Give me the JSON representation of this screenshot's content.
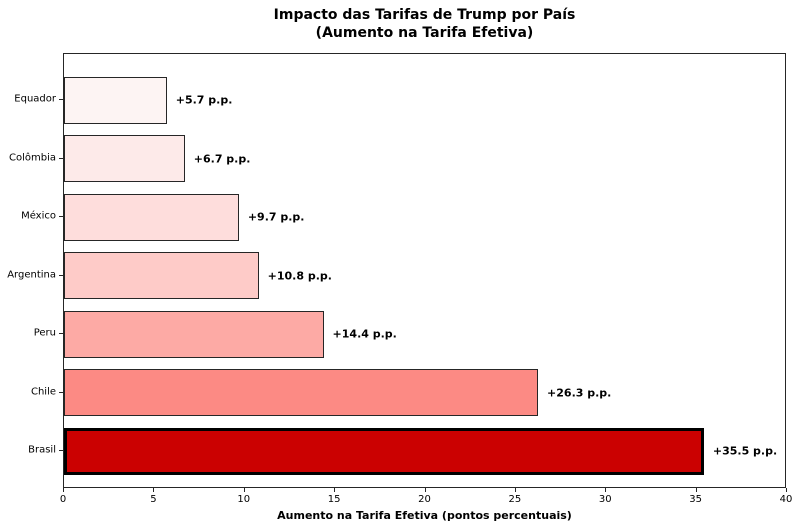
{
  "figure": {
    "title": "Impacto das Tarifas de Trump por País\n(Aumento na Tarifa Efetiva)"
  },
  "chart_data": {
    "type": "bar",
    "orientation": "horizontal",
    "title": "Impacto das Tarifas de Trump por País (Aumento na Tarifa Efetiva)",
    "categories": [
      "Equador",
      "Colômbia",
      "México",
      "Argentina",
      "Peru",
      "Chile",
      "Brasil"
    ],
    "values": [
      5.7,
      6.7,
      9.7,
      10.8,
      14.4,
      26.3,
      35.5
    ],
    "value_labels": [
      "+5.7 p.p.",
      "+6.7 p.p.",
      "+9.7 p.p.",
      "+10.8 p.p.",
      "+14.4 p.p.",
      "+26.3 p.p.",
      "+35.5 p.p."
    ],
    "bar_colors": [
      "#fdf4f3",
      "#fdeae9",
      "#fedddc",
      "#fecbc8",
      "#fdaaa5",
      "#fc8a84",
      "#cb0101"
    ],
    "bar_edge_colors": [
      "#262626",
      "#262626",
      "#262626",
      "#262626",
      "#262626",
      "#262626",
      "#000000"
    ],
    "bar_edge_widths": [
      1,
      1,
      1,
      1,
      1,
      1,
      3
    ],
    "highlight_category": "Brasil",
    "xlabel": "Aumento na Tarifa Efetiva (pontos percentuais)",
    "ylabel": "",
    "xlim": [
      0,
      40
    ],
    "xticks": [
      0,
      5,
      10,
      15,
      20,
      25,
      30,
      35,
      40
    ],
    "grid": false,
    "legend": false
  }
}
